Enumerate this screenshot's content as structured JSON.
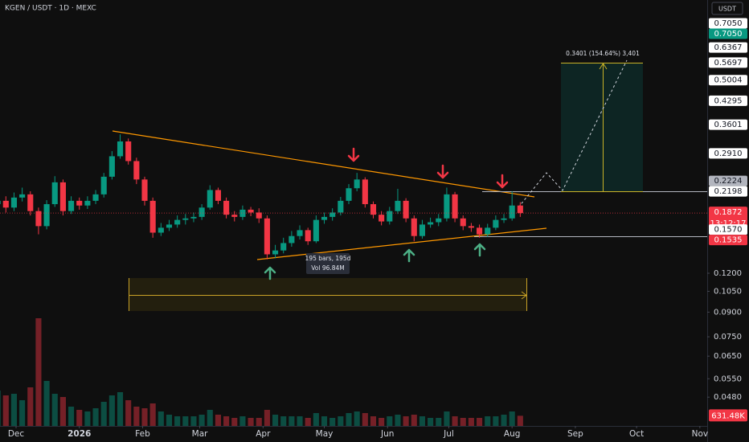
{
  "chart_data": {
    "type": "candlestick",
    "title": "KGEN / USDT · 1D · MEXC",
    "currency": "USDT",
    "log_scale": true,
    "grid": false,
    "x": [
      -9,
      -5,
      -1,
      3,
      7,
      11,
      15,
      19,
      23,
      27,
      31,
      35,
      39,
      43,
      47,
      51,
      55,
      59,
      63,
      67,
      71,
      75,
      79,
      83,
      87,
      91,
      95,
      99,
      103,
      107,
      111,
      115,
      119,
      123,
      127,
      131,
      135,
      139,
      143,
      147,
      151,
      155,
      159,
      163,
      167,
      171,
      175,
      179,
      183,
      187,
      191,
      195,
      199,
      203,
      207,
      211,
      215,
      219,
      223,
      227,
      231,
      235,
      239,
      243,
      247
    ],
    "xlim": [
      -7.87,
      338.6
    ],
    "xticks": [
      {
        "value": 0,
        "label": "Dec"
      },
      {
        "value": 31,
        "label": "2026"
      },
      {
        "value": 62,
        "label": "Feb"
      },
      {
        "value": 90,
        "label": "Mar"
      },
      {
        "value": 121,
        "label": "Apr"
      },
      {
        "value": 151,
        "label": "May"
      },
      {
        "value": 182,
        "label": "Jun"
      },
      {
        "value": 212,
        "label": "Jul"
      },
      {
        "value": 243,
        "label": "Aug"
      },
      {
        "value": 274,
        "label": "Sep"
      },
      {
        "value": 304,
        "label": "Oct"
      },
      {
        "value": 335,
        "label": "Nov"
      }
    ],
    "ylim": [
      0.0388,
      0.905
    ],
    "yticks": [
      {
        "value": 0.12,
        "label": "0.1200"
      },
      {
        "value": 0.105,
        "label": "0.1050"
      },
      {
        "value": 0.09,
        "label": "0.0900"
      },
      {
        "value": 0.075,
        "label": "0.0750"
      },
      {
        "value": 0.065,
        "label": "0.0650"
      },
      {
        "value": 0.055,
        "label": "0.0550"
      },
      {
        "value": 0.048,
        "label": "0.0480"
      }
    ],
    "open": [
      0.2,
      0.205,
      0.195,
      0.21,
      0.215,
      0.19,
      0.17,
      0.2,
      0.235,
      0.19,
      0.205,
      0.198,
      0.205,
      0.215,
      0.245,
      0.285,
      0.318,
      0.275,
      0.24,
      0.205,
      0.162,
      0.168,
      0.172,
      0.178,
      0.18,
      0.182,
      0.195,
      0.222,
      0.205,
      0.185,
      0.182,
      0.192,
      0.188,
      0.18,
      0.138,
      0.142,
      0.15,
      0.158,
      0.165,
      0.152,
      0.178,
      0.182,
      0.188,
      0.205,
      0.225,
      0.24,
      0.2,
      0.185,
      0.176,
      0.19,
      0.205,
      0.18,
      0.158,
      0.172,
      0.175,
      0.18,
      0.215,
      0.18,
      0.17,
      0.168,
      0.16,
      0.168,
      0.178,
      0.18,
      0.198
    ],
    "high": [
      0.214,
      0.212,
      0.218,
      0.226,
      0.22,
      0.195,
      0.206,
      0.246,
      0.24,
      0.212,
      0.21,
      0.212,
      0.222,
      0.252,
      0.296,
      0.335,
      0.325,
      0.282,
      0.245,
      0.21,
      0.174,
      0.178,
      0.184,
      0.186,
      0.188,
      0.2,
      0.23,
      0.226,
      0.21,
      0.19,
      0.198,
      0.196,
      0.194,
      0.184,
      0.148,
      0.156,
      0.164,
      0.171,
      0.168,
      0.184,
      0.188,
      0.194,
      0.211,
      0.232,
      0.252,
      0.244,
      0.204,
      0.19,
      0.196,
      0.224,
      0.209,
      0.184,
      0.178,
      0.181,
      0.186,
      0.226,
      0.219,
      0.184,
      0.174,
      0.172,
      0.173,
      0.184,
      0.186,
      0.22,
      0.203
    ],
    "low": [
      0.192,
      0.188,
      0.19,
      0.204,
      0.184,
      0.16,
      0.166,
      0.196,
      0.184,
      0.186,
      0.192,
      0.193,
      0.2,
      0.21,
      0.24,
      0.28,
      0.268,
      0.232,
      0.198,
      0.156,
      0.158,
      0.164,
      0.168,
      0.172,
      0.175,
      0.178,
      0.192,
      0.2,
      0.18,
      0.176,
      0.178,
      0.183,
      0.174,
      0.133,
      0.134,
      0.139,
      0.146,
      0.154,
      0.148,
      0.15,
      0.173,
      0.177,
      0.184,
      0.2,
      0.22,
      0.195,
      0.18,
      0.171,
      0.172,
      0.186,
      0.175,
      0.152,
      0.155,
      0.168,
      0.17,
      0.176,
      0.175,
      0.165,
      0.163,
      0.156,
      0.157,
      0.165,
      0.174,
      0.177,
      0.182
    ],
    "close": [
      0.205,
      0.195,
      0.21,
      0.215,
      0.19,
      0.17,
      0.2,
      0.235,
      0.19,
      0.205,
      0.198,
      0.205,
      0.215,
      0.245,
      0.285,
      0.318,
      0.275,
      0.24,
      0.205,
      0.162,
      0.168,
      0.172,
      0.178,
      0.18,
      0.182,
      0.195,
      0.222,
      0.205,
      0.185,
      0.182,
      0.192,
      0.188,
      0.18,
      0.138,
      0.142,
      0.15,
      0.158,
      0.165,
      0.152,
      0.178,
      0.182,
      0.188,
      0.205,
      0.225,
      0.24,
      0.2,
      0.185,
      0.176,
      0.19,
      0.205,
      0.18,
      0.158,
      0.172,
      0.175,
      0.18,
      0.215,
      0.18,
      0.17,
      0.168,
      0.16,
      0.168,
      0.178,
      0.18,
      0.198,
      0.1872
    ],
    "up_color": "#089981",
    "down_color": "#f23645",
    "last_price_countdown": "13:12:17",
    "price_labels": [
      {
        "value": 0.705,
        "label": "0.7050",
        "color": "#ffffff"
      },
      {
        "value": 0.705,
        "label": "0.7050",
        "color": "#089981"
      },
      {
        "value": 0.6367,
        "color": "#ffffff"
      },
      {
        "value": 0.5697,
        "color": "#ffffff"
      },
      {
        "value": 0.5004,
        "color": "#ffffff"
      },
      {
        "value": 0.4295,
        "color": "#ffffff"
      },
      {
        "value": 0.3601,
        "color": "#ffffff"
      },
      {
        "value": 0.291,
        "label": "0.2910",
        "color": "#ffffff"
      },
      {
        "value": 0.2224,
        "color": "#b2b5be"
      },
      {
        "value": 0.2198,
        "color": "#ffffff"
      },
      {
        "value": 0.157,
        "label": "0.1570",
        "color": "#ffffff"
      },
      {
        "value": 0.1535,
        "color": "#f23645"
      }
    ],
    "volume": {
      "ylim": [
        0,
        26500000
      ],
      "values": [
        2200000,
        1900000,
        2000000,
        1600000,
        2400000,
        6700000,
        2800000,
        2000000,
        1800000,
        1200000,
        1000000,
        900000,
        1100000,
        1500000,
        1900000,
        2100000,
        1600000,
        1200000,
        1100000,
        1400000,
        900000,
        700000,
        600000,
        600000,
        600000,
        700000,
        1000000,
        700000,
        600000,
        500000,
        600000,
        500000,
        500000,
        1000000,
        700000,
        600000,
        600000,
        600000,
        500000,
        800000,
        600000,
        500000,
        600000,
        800000,
        900000,
        800000,
        600000,
        500000,
        600000,
        700000,
        600000,
        700000,
        600000,
        500000,
        500000,
        900000,
        600000,
        500000,
        500000,
        500000,
        600000,
        600000,
        700000,
        900000,
        631480
      ],
      "value_labels": [
        null,
        null,
        null,
        null,
        null,
        null,
        null,
        null,
        null,
        null,
        null,
        null,
        null,
        null,
        null,
        null,
        null,
        null,
        null,
        null,
        null,
        null,
        null,
        null,
        null,
        null,
        null,
        null,
        null,
        null,
        null,
        null,
        null,
        null,
        null,
        null,
        null,
        null,
        null,
        null,
        null,
        null,
        null,
        null,
        null,
        null,
        null,
        null,
        null,
        null,
        null,
        null,
        null,
        null,
        null,
        null,
        null,
        null,
        null,
        null,
        null,
        null,
        null,
        null,
        "631.48K"
      ]
    },
    "annotations": {
      "position": "0.3401 (154.64%) 3,401",
      "range_bars": "195 bars, 195d",
      "range_volume": "Vol 96.84M"
    }
  }
}
